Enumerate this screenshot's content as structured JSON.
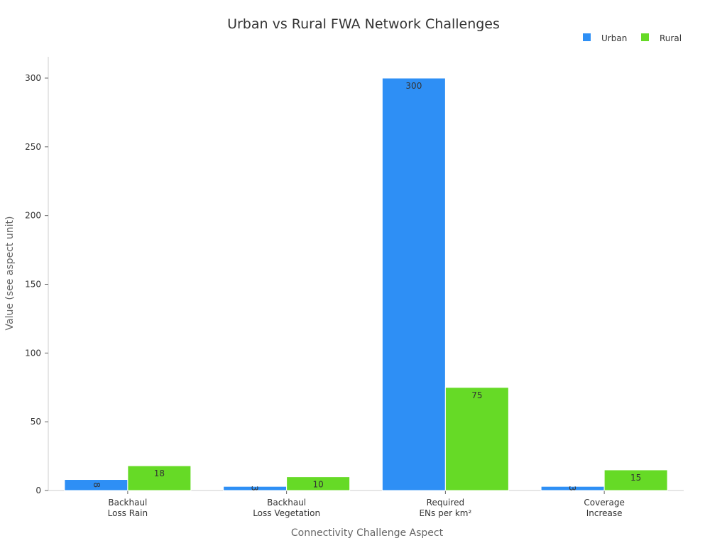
{
  "chart_data": {
    "type": "bar",
    "title": "Urban vs Rural FWA Network Challenges",
    "xlabel": "Connectivity Challenge Aspect",
    "ylabel": "Value (see aspect unit)",
    "categories": [
      [
        "Backhaul",
        "Loss Rain"
      ],
      [
        "Backhaul",
        "Loss Vegetation"
      ],
      [
        "Required",
        "ENs per km²"
      ],
      [
        "Coverage",
        "Increase"
      ]
    ],
    "series": [
      {
        "name": "Urban",
        "color": "#2e8ff5",
        "values": [
          8,
          3,
          300,
          3
        ]
      },
      {
        "name": "Rural",
        "color": "#66da26",
        "values": [
          18,
          10,
          75,
          15
        ]
      }
    ],
    "ylim": [
      0,
      315
    ],
    "yticks": [
      0,
      50,
      100,
      150,
      200,
      250,
      300
    ],
    "grid": false,
    "legend": "top-right"
  }
}
